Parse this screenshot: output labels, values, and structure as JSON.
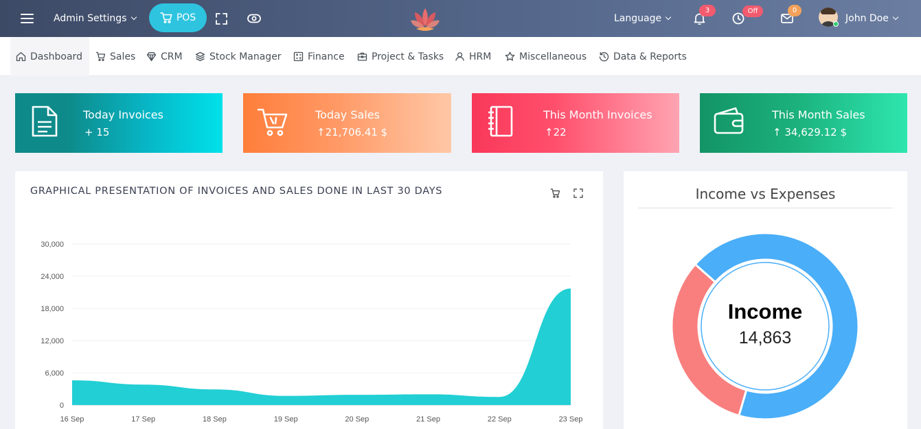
{
  "topbar": {
    "admin_settings": "Admin Settings",
    "pos_label": "POS",
    "language": "Language",
    "notifications_count": "3",
    "clock_badge": "Off",
    "messages_count": "0",
    "user_name": "John Doe"
  },
  "nav": {
    "items": [
      {
        "label": "Dashboard",
        "icon": "home-icon"
      },
      {
        "label": "Sales",
        "icon": "cart-icon"
      },
      {
        "label": "CRM",
        "icon": "diamond-icon"
      },
      {
        "label": "Stock Manager",
        "icon": "layers-icon"
      },
      {
        "label": "Finance",
        "icon": "calculator-icon"
      },
      {
        "label": "Project & Tasks",
        "icon": "briefcase-icon"
      },
      {
        "label": "HRM",
        "icon": "users-icon"
      },
      {
        "label": "Miscellaneous",
        "icon": "star-icon"
      },
      {
        "label": "Data & Reports",
        "icon": "history-icon"
      }
    ]
  },
  "cards": [
    {
      "title": "Today Invoices",
      "value": "+ 15",
      "icon": "document-icon"
    },
    {
      "title": "Today Sales",
      "value": "↑21,706.41 $",
      "icon": "cart-icon"
    },
    {
      "title": "This Month Invoices",
      "value": "↑22",
      "icon": "notebook-icon"
    },
    {
      "title": "This Month Sales",
      "value": "↑ 34,629.12 $",
      "icon": "wallet-icon"
    }
  ],
  "chart_panel": {
    "title": "GRAPHICAL PRESENTATION OF INVOICES AND SALES DONE IN LAST 30 DAYS"
  },
  "donut_panel": {
    "title": "Income vs Expenses",
    "center_label": "Income",
    "center_value": "14,863"
  },
  "colors": {
    "area": "#22cfd4",
    "income": "#4aaef8",
    "expenses": "#f97f7f"
  },
  "chart_data": [
    {
      "type": "area",
      "title": "GRAPHICAL PRESENTATION OF INVOICES AND SALES DONE IN LAST 30 DAYS",
      "xlabel": "",
      "ylabel": "",
      "categories": [
        "16 Sep",
        "17 Sep",
        "18 Sep",
        "19 Sep",
        "20 Sep",
        "21 Sep",
        "22 Sep",
        "23 Sep"
      ],
      "values": [
        4600,
        3800,
        2900,
        1700,
        1900,
        2000,
        1500,
        21700
      ],
      "y_ticks": [
        "0",
        "6,000",
        "12,000",
        "18,000",
        "24,000",
        "30,000"
      ],
      "ylim": [
        0,
        30000
      ],
      "grid": true
    },
    {
      "type": "pie",
      "title": "Income vs Expenses",
      "categories": [
        "Income",
        "Expenses"
      ],
      "values": [
        14863,
        7000
      ]
    }
  ]
}
